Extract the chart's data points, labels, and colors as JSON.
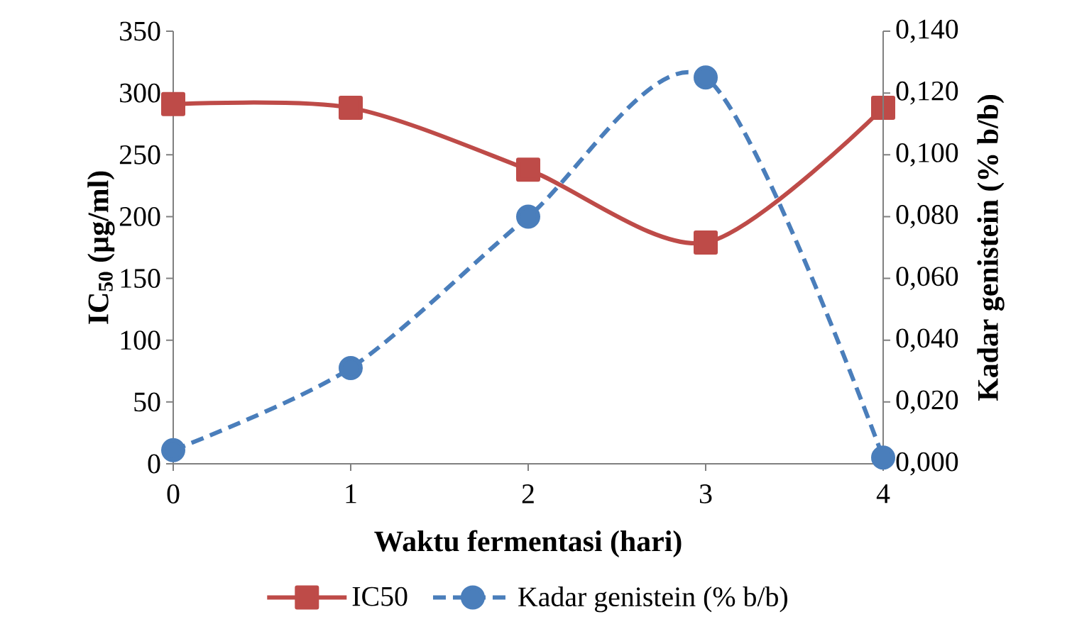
{
  "chart_data": {
    "type": "line",
    "xlabel": "Waktu fermentasi (hari)",
    "ylabel": "IC$_{50}$ (µg/ml)",
    "y2label": "Kadar genistein (% b/b)",
    "x": [
      0,
      1,
      2,
      3,
      4
    ],
    "xlim": [
      0,
      4
    ],
    "xticks": [
      0,
      1,
      2,
      3,
      4
    ],
    "ylim": [
      0,
      350
    ],
    "yticks": [
      0,
      50,
      100,
      150,
      200,
      250,
      300,
      350
    ],
    "y2lim": [
      0,
      0.14
    ],
    "y2ticks": [
      {
        "value": 0,
        "label": "0,000"
      },
      {
        "value": 0.02,
        "label": "0,020"
      },
      {
        "value": 0.04,
        "label": "0,040"
      },
      {
        "value": 0.06,
        "label": "0,060"
      },
      {
        "value": 0.08,
        "label": "0,080"
      },
      {
        "value": 0.1,
        "label": "0,100"
      },
      {
        "value": 0.12,
        "label": "0,120"
      },
      {
        "value": 0.14,
        "label": "0,140"
      }
    ],
    "series": [
      {
        "name": "IC50",
        "color": "#be4b48",
        "values": [
          291,
          288,
          238,
          179,
          288
        ],
        "marker": "square",
        "line_style": "solid"
      },
      {
        "name": "Kadar genistein (% b/b)",
        "color": "#4a7ebb",
        "values": [
          0.0044,
          0.031,
          0.08,
          0.125,
          0.002
        ],
        "axis": "y2",
        "marker": "circle",
        "line_style": "dashed"
      }
    ],
    "grid": false,
    "legend": "bottom"
  }
}
